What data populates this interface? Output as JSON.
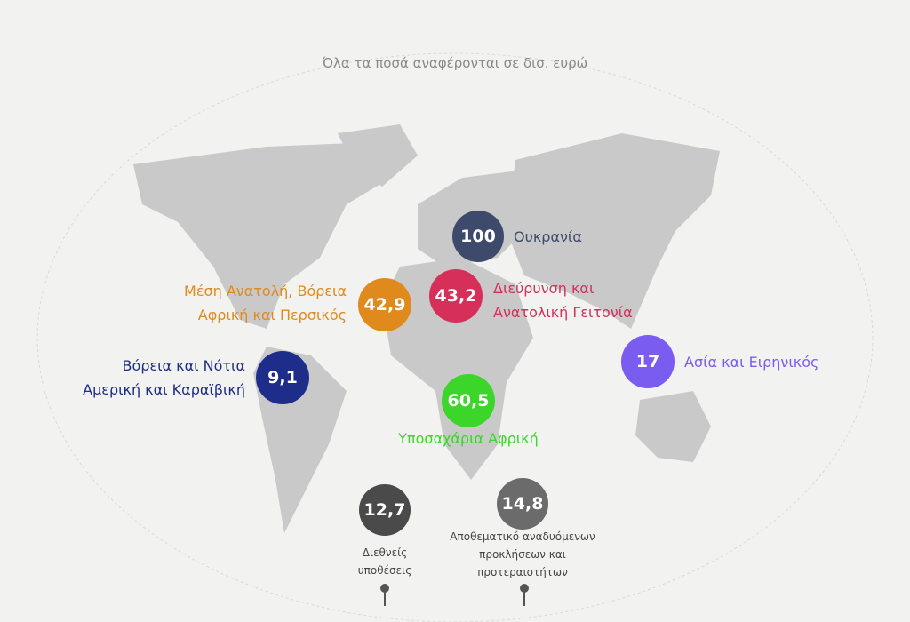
{
  "note": "Όλα τα ποσά αναφέρονται σε δισ. ευρώ",
  "regions": [
    {
      "value": "100",
      "label": [
        "Ουκρανία"
      ],
      "color": "#3d4a6b"
    },
    {
      "value": "42,9",
      "label": [
        "Μέση Ανατολή, Βόρεια",
        "Αφρική και Περσικός"
      ],
      "color": "#e08a1e"
    },
    {
      "value": "43,2",
      "label": [
        "Διεύρυνση και",
        "Ανατολική Γειτονία"
      ],
      "color": "#d6305a"
    },
    {
      "value": "9,1",
      "label": [
        "Βόρεια και Νότια",
        "Αμερική και Καραϊβική"
      ],
      "color": "#1f2d8a"
    },
    {
      "value": "17",
      "label": [
        "Ασία και Ειρηνικός"
      ],
      "color": "#7b5cf0"
    },
    {
      "value": "60,5",
      "label": [
        "Υποσαχάρια Αφρική"
      ],
      "color": "#3cd62a"
    }
  ],
  "reserves": [
    {
      "value": "12,7",
      "label": [
        "Διεθνείς",
        "υποθέσεις"
      ],
      "color": "#4a4a4a"
    },
    {
      "value": "14,8",
      "label": [
        "Αποθεματικό αναδυόμενων",
        "προκλήσεων και",
        "προτεραιοτήτων"
      ],
      "color": "#6b6b6b"
    }
  ]
}
